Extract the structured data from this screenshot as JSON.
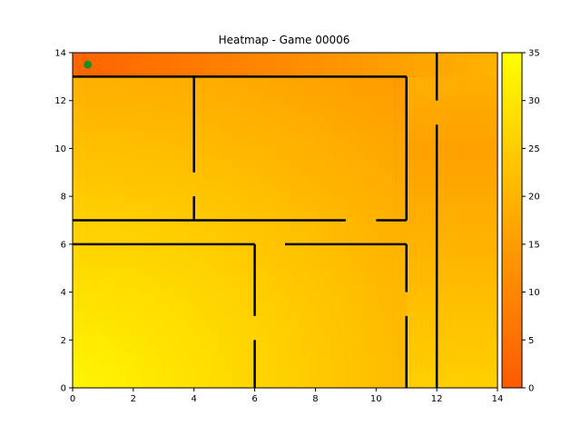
{
  "title": "Heatmap - Game 00006",
  "colors": {
    "low": "#ff5a00",
    "high": "#ffff00",
    "wall": "#000000",
    "marker": "#228b22"
  },
  "chart_data": {
    "type": "heatmap",
    "title": "Heatmap - Game 00006",
    "xlim": [
      0,
      14
    ],
    "ylim": [
      0,
      14
    ],
    "xticks": [
      "0",
      "2",
      "4",
      "6",
      "8",
      "10",
      "12",
      "14"
    ],
    "yticks": [
      "0",
      "2",
      "4",
      "6",
      "8",
      "10",
      "12",
      "14"
    ],
    "colorbar": {
      "min": 0,
      "max": 35,
      "ticks": [
        "0",
        "5",
        "10",
        "15",
        "20",
        "25",
        "30",
        "35"
      ]
    },
    "grid": false,
    "marker": {
      "x": 0.5,
      "y": 13.5
    },
    "walls": [
      [
        0,
        13,
        11,
        13
      ],
      [
        11,
        13,
        11,
        7
      ],
      [
        10,
        7,
        11,
        7
      ],
      [
        0,
        7,
        9,
        7
      ],
      [
        4,
        13,
        4,
        9
      ],
      [
        4,
        8,
        4,
        7
      ],
      [
        0,
        6,
        6,
        6
      ],
      [
        6,
        6,
        6,
        3
      ],
      [
        6,
        2,
        6,
        0
      ],
      [
        7,
        6,
        11,
        6
      ],
      [
        11,
        6,
        11,
        4
      ],
      [
        11,
        3,
        11,
        0
      ],
      [
        12,
        14,
        12,
        12
      ],
      [
        12,
        11,
        12,
        0
      ]
    ],
    "field_centers": [
      {
        "x": 0,
        "y": 0,
        "v": 35
      },
      {
        "x": 13,
        "y": 10,
        "v": 18
      },
      {
        "x": 0,
        "y": 14,
        "v": 0
      }
    ]
  }
}
